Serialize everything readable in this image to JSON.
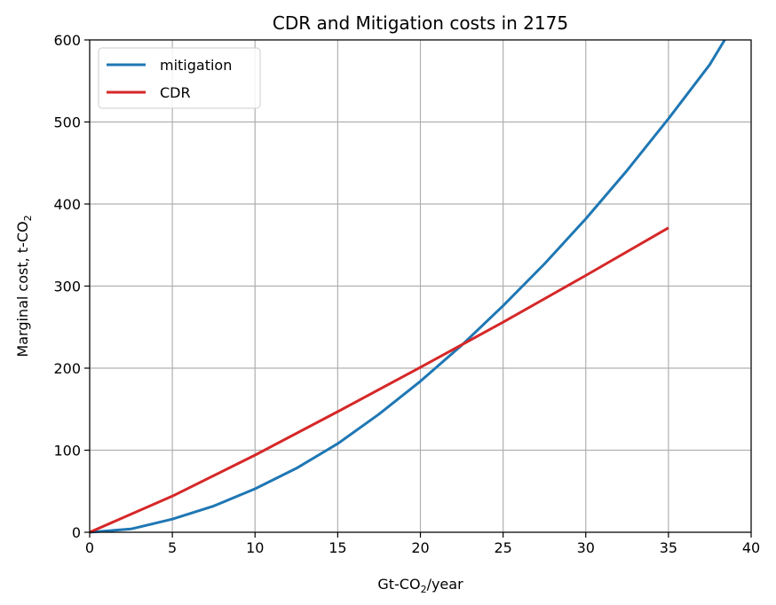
{
  "chart_data": {
    "type": "line",
    "title": "CDR and Mitigation costs in 2175",
    "xlabel": {
      "main": "Gt-CO",
      "sub": "2",
      "tail": "/year"
    },
    "ylabel": {
      "main": "Marginal cost, t-CO",
      "sub": "2"
    },
    "xlim": [
      0,
      40
    ],
    "ylim": [
      0,
      600
    ],
    "xticks": [
      0,
      5,
      10,
      15,
      20,
      25,
      30,
      35,
      40
    ],
    "yticks": [
      0,
      100,
      200,
      300,
      400,
      500,
      600
    ],
    "grid": true,
    "legend_position": "top-left",
    "series": [
      {
        "name": "mitigation",
        "color": "#1f77b4",
        "x": [
          0,
          2.5,
          5,
          7.5,
          10,
          12.5,
          15,
          17.5,
          20,
          22.5,
          25,
          27.5,
          30,
          32.5,
          35,
          37.5,
          38.4
        ],
        "y": [
          0,
          4,
          16,
          32,
          53,
          78,
          108,
          144,
          184,
          228,
          276,
          327,
          382,
          441,
          504,
          570,
          600
        ]
      },
      {
        "name": "CDR",
        "color": "#d62728",
        "x": [
          0,
          5,
          10,
          15,
          20,
          25,
          30,
          35
        ],
        "y": [
          0,
          44,
          94,
          147,
          201,
          256,
          313,
          371
        ]
      }
    ]
  }
}
